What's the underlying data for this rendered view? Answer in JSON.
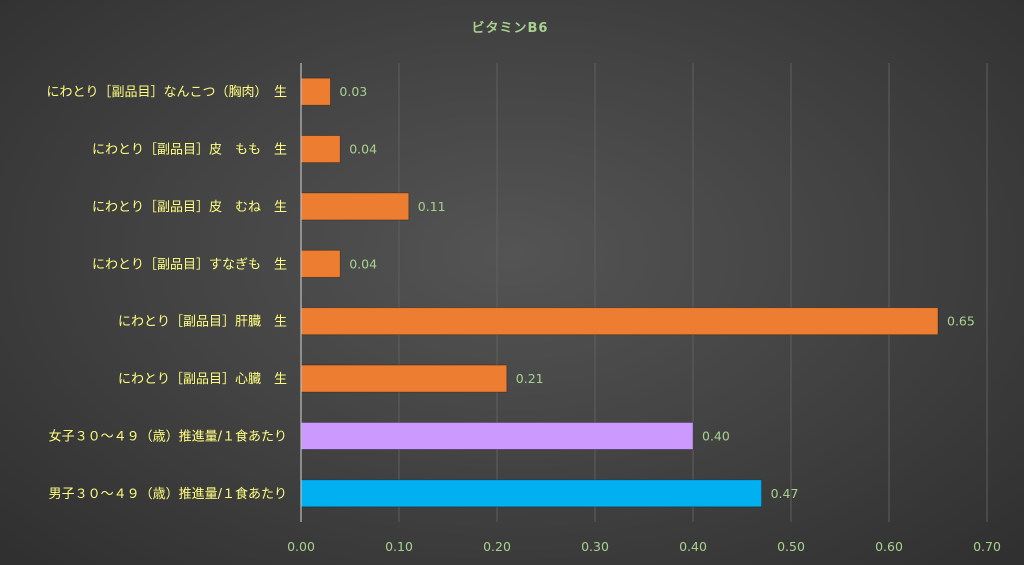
{
  "chart_data": {
    "type": "bar",
    "orientation": "horizontal",
    "title": "ビタミンB6",
    "categories": [
      "にわとり［副品目］なんこつ（胸肉）　生",
      "にわとり［副品目］皮　もも　生",
      "にわとり［副品目］皮　むね　生",
      "にわとり［副品目］すなぎも　生",
      "にわとり［副品目］肝臓　生",
      "にわとり［副品目］心臓　生",
      "女子３０～４９（歳）推進量/１食あたり",
      "男子３０～４９（歳）推進量/１食あたり"
    ],
    "values": [
      0.03,
      0.04,
      0.11,
      0.04,
      0.65,
      0.21,
      0.4,
      0.47
    ],
    "value_labels": [
      "0.03",
      "0.04",
      "0.11",
      "0.04",
      "0.65",
      "0.21",
      "0.40",
      "0.47"
    ],
    "bar_colors": [
      "#ed7d31",
      "#ed7d31",
      "#ed7d31",
      "#ed7d31",
      "#ed7d31",
      "#ed7d31",
      "#cc99ff",
      "#00b0f0"
    ],
    "xlim": [
      0,
      0.7
    ],
    "xticks": [
      "0.00",
      "0.10",
      "0.20",
      "0.30",
      "0.40",
      "0.50",
      "0.60",
      "0.70"
    ],
    "xlabel": "",
    "ylabel": "",
    "grid": true,
    "legend": "none"
  }
}
